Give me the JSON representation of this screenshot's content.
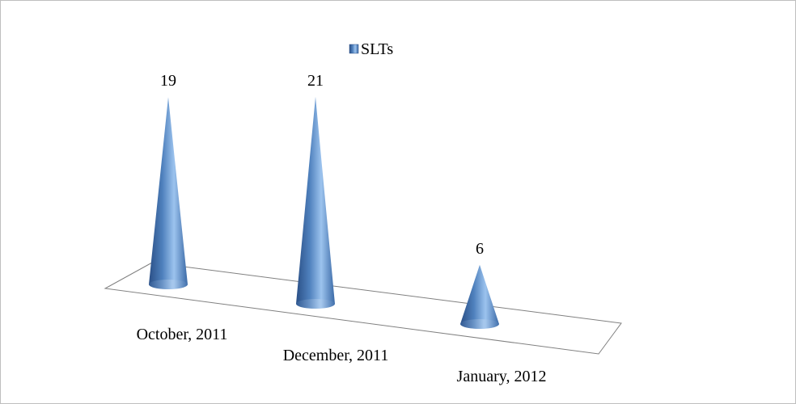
{
  "chart_data": {
    "type": "cone",
    "title": null,
    "categories": [
      "October, 2011",
      "December, 2011",
      "January, 2012"
    ],
    "series": [
      {
        "name": "SLTs",
        "color": "#4f81bd",
        "values": [
          19,
          21,
          6
        ]
      }
    ],
    "legend": "top"
  }
}
